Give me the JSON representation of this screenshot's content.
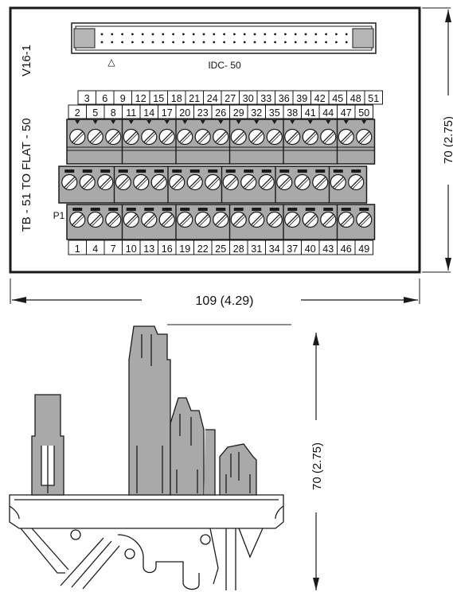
{
  "top_view": {
    "side_label": "TB - 51 TO FLAT - 50",
    "model_label": "V16-1",
    "connector_label": "IDC- 50",
    "pin1_marker": "△",
    "p1_label": "P1",
    "top_row_numbers": [
      "3",
      "6",
      "9",
      "12",
      "15",
      "18",
      "21",
      "24",
      "27",
      "30",
      "33",
      "36",
      "39",
      "42",
      "45",
      "48",
      "51"
    ],
    "second_row_numbers": [
      "2",
      "5",
      "8",
      "11",
      "14",
      "17",
      "20",
      "23",
      "26",
      "29",
      "32",
      "35",
      "38",
      "41",
      "44",
      "47",
      "50"
    ],
    "bottom_row_numbers": [
      "1",
      "4",
      "7",
      "10",
      "13",
      "16",
      "19",
      "22",
      "25",
      "28",
      "31",
      "34",
      "37",
      "40",
      "43",
      "46",
      "49"
    ]
  },
  "dimensions": {
    "width_label": "109 (4.29)",
    "height_label_top": "70 (2.75)",
    "height_label_side": "70 (2.75)"
  },
  "colors": {
    "terminal_fill": "#a9a9a9",
    "outline": "#1a1a1a",
    "terminal_dark": "#8c8c8c"
  }
}
